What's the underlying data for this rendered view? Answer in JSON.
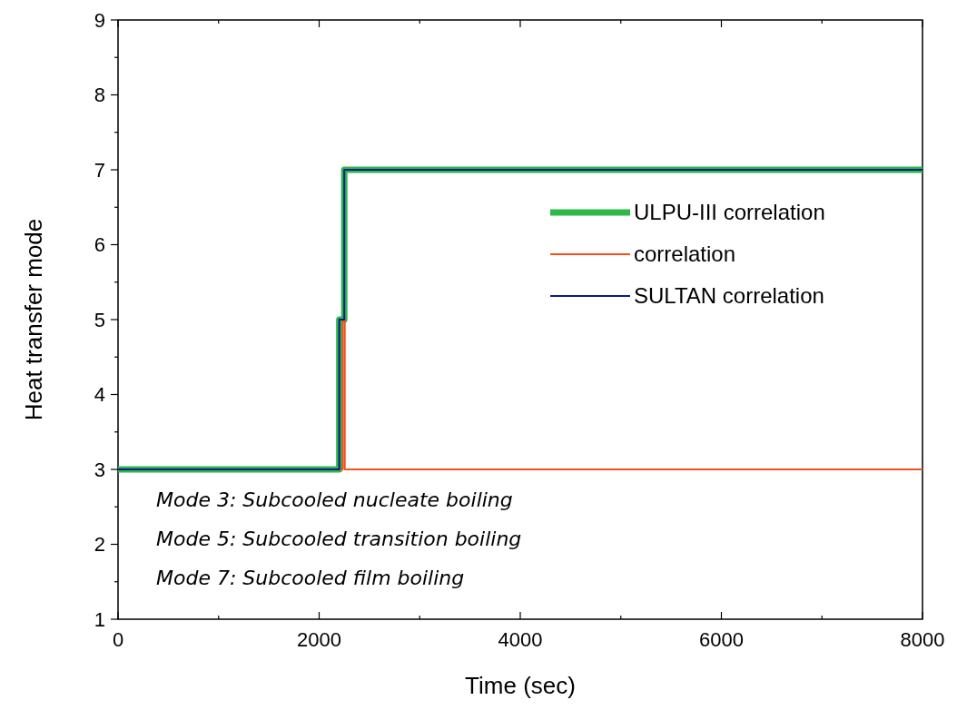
{
  "chart_data": {
    "type": "step",
    "xlabel": "Time (sec)",
    "ylabel": "Heat transfer mode",
    "xlim": [
      0,
      8000
    ],
    "ylim": [
      1,
      9
    ],
    "xticks": [
      0,
      {
        "value": 1000,
        "label": null
      },
      2000,
      {
        "value": 3000,
        "label": null
      },
      4000,
      {
        "value": 5000,
        "label": null
      },
      6000,
      {
        "value": 7000,
        "label": null
      },
      8000
    ],
    "yticks": [
      1,
      {
        "value": 1.5,
        "label": null
      },
      2,
      {
        "value": 2.5,
        "label": null
      },
      3,
      {
        "value": 3.5,
        "label": null
      },
      4,
      {
        "value": 4.5,
        "label": null
      },
      5,
      {
        "value": 5.5,
        "label": null
      },
      6,
      {
        "value": 6.5,
        "label": null
      },
      7,
      {
        "value": 7.5,
        "label": null
      },
      8,
      {
        "value": 8.5,
        "label": null
      },
      9
    ],
    "series": [
      {
        "name": "ULPU-III correlation",
        "color": "#2db84a",
        "x": [
          0,
          2200,
          2250,
          8000
        ],
        "values": [
          3,
          5,
          7,
          7
        ]
      },
      {
        "name": "correlation",
        "color": "#f4511e",
        "x": [
          0,
          2235,
          2255,
          8000
        ],
        "values": [
          3,
          5,
          3,
          3
        ]
      },
      {
        "name": "SULTAN correlation",
        "color": "#0d1a8c",
        "x": [
          0,
          2200,
          2250,
          8000
        ],
        "values": [
          3,
          5,
          7,
          7
        ]
      }
    ],
    "legend": "top right",
    "annotations": [
      "Mode 3: Subcooled nucleate boiling",
      "Mode 5: Subcooled transition boiling",
      "Mode 7: Subcooled film boiling"
    ]
  }
}
